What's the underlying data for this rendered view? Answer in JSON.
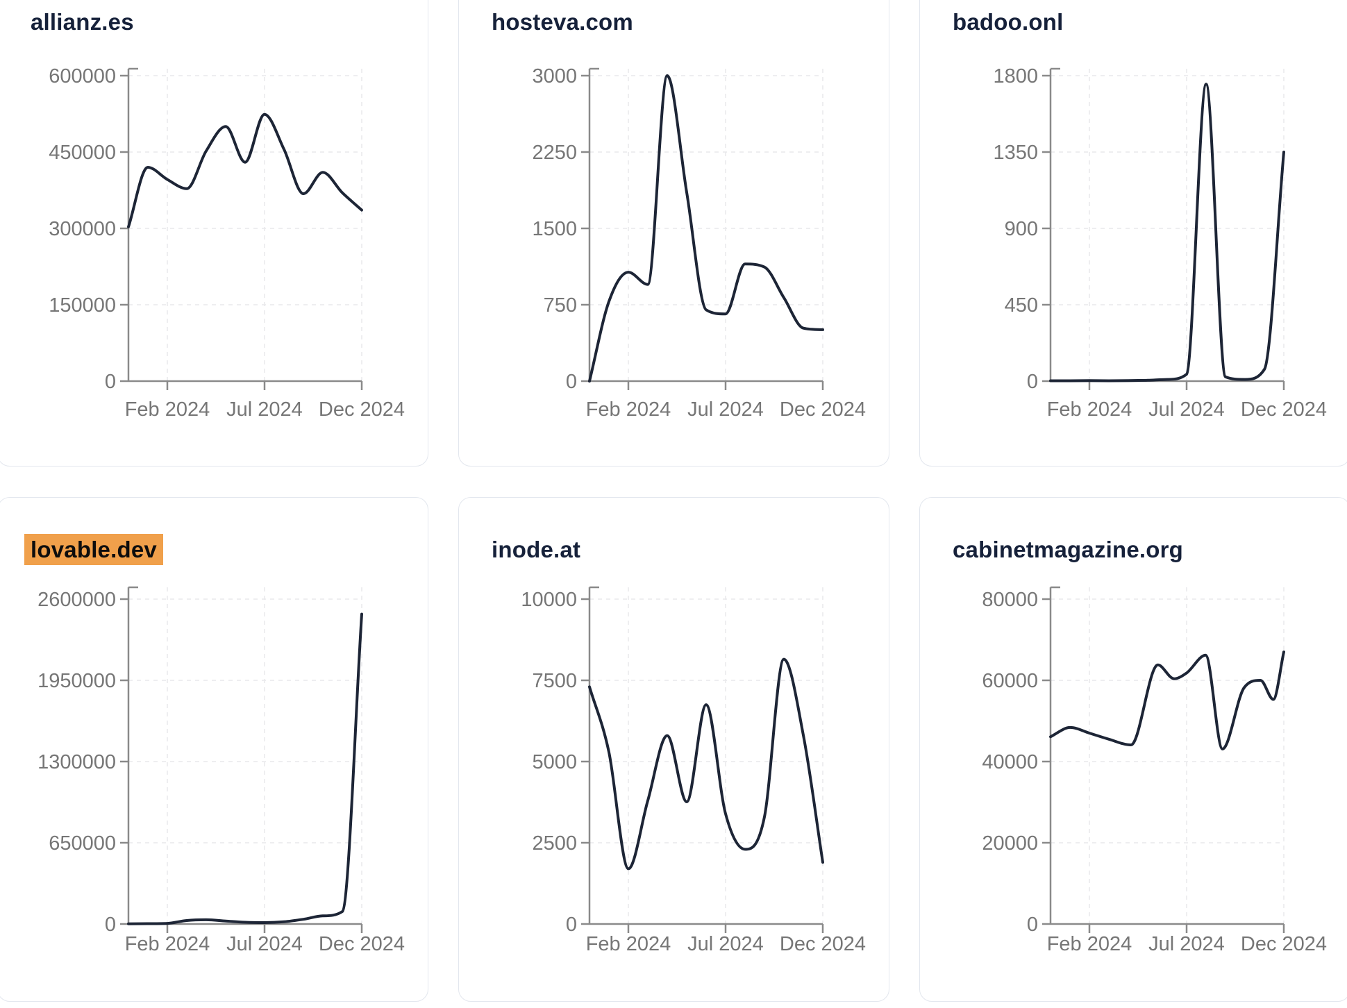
{
  "page": {
    "background": "#ffffff",
    "card_border_color": "#e3e7ee",
    "title_color": "#16213a",
    "highlight_color": "#f0a04b",
    "highlight_text_color": "#0d0d0d",
    "line_color": "#1d2536",
    "axis_color": "#8a8a8a",
    "grid_color": "#e9e9ec",
    "tick_label_color": "#767676"
  },
  "chart_data": [
    {
      "type": "line",
      "title": "allianz.es",
      "highlighted": false,
      "x_range": [
        "Dec 2023",
        "Dec 2024"
      ],
      "x_tick_labels": [
        "Feb 2024",
        "Jul 2024",
        "Dec 2024"
      ],
      "y_ticks": [
        0,
        150000,
        300000,
        450000,
        600000
      ],
      "ylim": [
        0,
        600000
      ],
      "grid": true,
      "legend": "none",
      "points": [
        [
          0,
          303000
        ],
        [
          0.083,
          420000
        ],
        [
          0.167,
          396000
        ],
        [
          0.25,
          378000
        ],
        [
          0.333,
          452000
        ],
        [
          0.417,
          500000
        ],
        [
          0.5,
          430000
        ],
        [
          0.583,
          524000
        ],
        [
          0.667,
          455000
        ],
        [
          0.75,
          368000
        ],
        [
          0.833,
          410000
        ],
        [
          0.917,
          370000
        ],
        [
          1,
          336000
        ]
      ]
    },
    {
      "type": "line",
      "title": "hosteva.com",
      "highlighted": false,
      "x_range": [
        "Dec 2023",
        "Dec 2024"
      ],
      "x_tick_labels": [
        "Feb 2024",
        "Jul 2024",
        "Dec 2024"
      ],
      "y_ticks": [
        0,
        750,
        1500,
        2250,
        3000
      ],
      "ylim": [
        0,
        3000
      ],
      "grid": true,
      "legend": "none",
      "points": [
        [
          0,
          0
        ],
        [
          0.083,
          780
        ],
        [
          0.167,
          1070
        ],
        [
          0.25,
          950
        ],
        [
          0.333,
          3000
        ],
        [
          0.417,
          1850
        ],
        [
          0.5,
          700
        ],
        [
          0.583,
          660
        ],
        [
          0.667,
          1150
        ],
        [
          0.75,
          1120
        ],
        [
          0.833,
          820
        ],
        [
          0.917,
          520
        ],
        [
          1,
          505
        ]
      ]
    },
    {
      "type": "line",
      "title": "badoo.onl",
      "highlighted": false,
      "x_range": [
        "Dec 2023",
        "Dec 2024"
      ],
      "x_tick_labels": [
        "Feb 2024",
        "Jul 2024",
        "Dec 2024"
      ],
      "y_ticks": [
        0,
        450,
        900,
        1350,
        1800
      ],
      "ylim": [
        0,
        1800
      ],
      "grid": true,
      "legend": "none",
      "points": [
        [
          0,
          2
        ],
        [
          0.083,
          2
        ],
        [
          0.167,
          3
        ],
        [
          0.25,
          2
        ],
        [
          0.333,
          3
        ],
        [
          0.417,
          5
        ],
        [
          0.5,
          10
        ],
        [
          0.583,
          40
        ],
        [
          0.667,
          1750
        ],
        [
          0.75,
          25
        ],
        [
          0.833,
          10
        ],
        [
          0.917,
          70
        ],
        [
          1,
          1350
        ]
      ]
    },
    {
      "type": "line",
      "title": "lovable.dev",
      "highlighted": true,
      "x_range": [
        "Dec 2023",
        "Dec 2024"
      ],
      "x_tick_labels": [
        "Feb 2024",
        "Jul 2024",
        "Dec 2024"
      ],
      "y_ticks": [
        0,
        650000,
        1300000,
        1950000,
        2600000
      ],
      "ylim": [
        0,
        2600000
      ],
      "grid": true,
      "legend": "none",
      "points": [
        [
          0,
          1500
        ],
        [
          0.083,
          2500
        ],
        [
          0.167,
          5000
        ],
        [
          0.25,
          28000
        ],
        [
          0.333,
          34000
        ],
        [
          0.417,
          24000
        ],
        [
          0.5,
          14000
        ],
        [
          0.583,
          11000
        ],
        [
          0.667,
          18000
        ],
        [
          0.75,
          38000
        ],
        [
          0.833,
          65000
        ],
        [
          0.917,
          100000
        ],
        [
          1,
          2480000
        ]
      ]
    },
    {
      "type": "line",
      "title": "inode.at",
      "highlighted": false,
      "x_range": [
        "Dec 2023",
        "Dec 2024"
      ],
      "x_tick_labels": [
        "Feb 2024",
        "Jul 2024",
        "Dec 2024"
      ],
      "y_ticks": [
        0,
        2500,
        5000,
        7500,
        10000
      ],
      "ylim": [
        0,
        10000
      ],
      "grid": true,
      "legend": "none",
      "points": [
        [
          0,
          7300
        ],
        [
          0.083,
          5300
        ],
        [
          0.167,
          1700
        ],
        [
          0.25,
          3800
        ],
        [
          0.333,
          5800
        ],
        [
          0.417,
          3760
        ],
        [
          0.5,
          6750
        ],
        [
          0.583,
          3400
        ],
        [
          0.667,
          2300
        ],
        [
          0.75,
          3300
        ],
        [
          0.833,
          8150
        ],
        [
          0.917,
          5800
        ],
        [
          1,
          1900
        ]
      ]
    },
    {
      "type": "line",
      "title": "cabinetmagazine.org",
      "highlighted": false,
      "x_range": [
        "Dec 2023",
        "Dec 2024"
      ],
      "x_tick_labels": [
        "Feb 2024",
        "Jul 2024",
        "Dec 2024"
      ],
      "y_ticks": [
        0,
        20000,
        40000,
        60000,
        80000
      ],
      "ylim": [
        0,
        80000
      ],
      "grid": true,
      "legend": "none",
      "points": [
        [
          0,
          46100
        ],
        [
          0.084,
          48400
        ],
        [
          0.167,
          47000
        ],
        [
          0.25,
          45500
        ],
        [
          0.345,
          44100
        ],
        [
          0.46,
          63800
        ],
        [
          0.53,
          60400
        ],
        [
          0.583,
          61800
        ],
        [
          0.665,
          66200
        ],
        [
          0.737,
          43100
        ],
        [
          0.83,
          58200
        ],
        [
          0.9,
          60000
        ],
        [
          0.955,
          55300
        ],
        [
          1,
          67000
        ]
      ]
    }
  ]
}
